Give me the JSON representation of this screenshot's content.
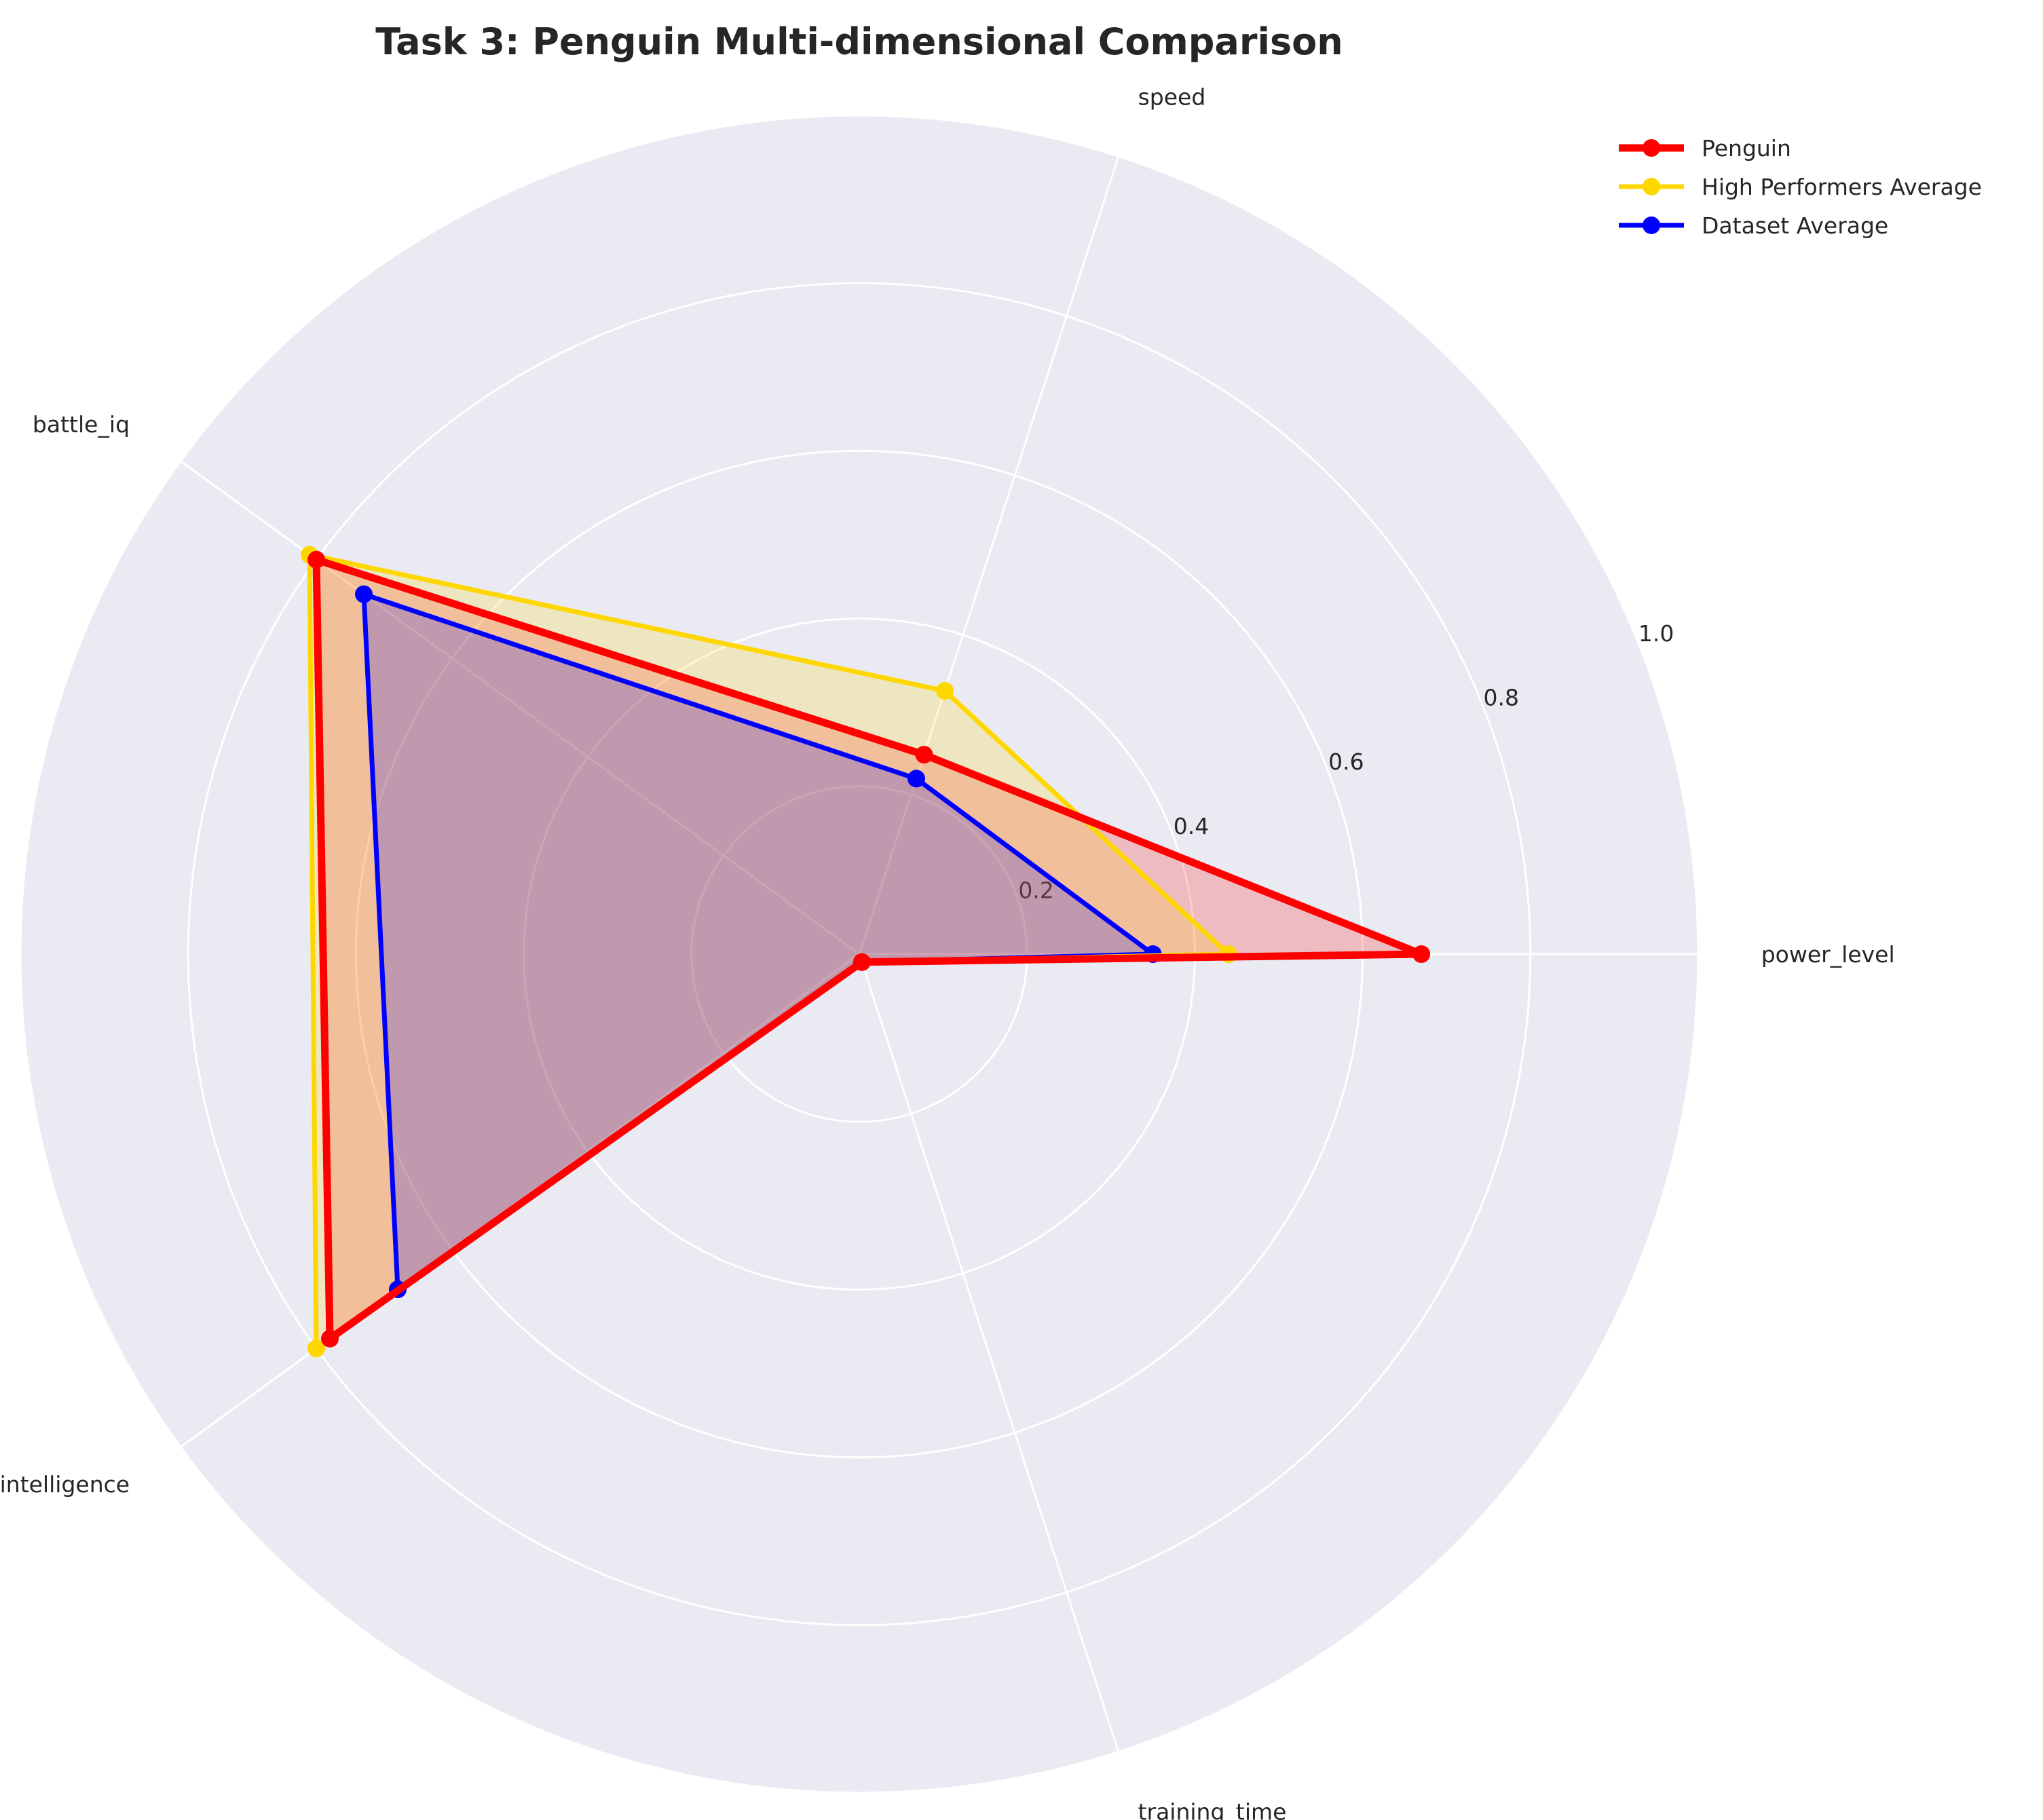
{
  "chart_data": {
    "type": "radar",
    "title": "Task 3: Penguin Multi-dimensional Comparison",
    "axes": [
      "power_level",
      "speed",
      "battle_iq",
      "intelligence",
      "training_time"
    ],
    "rlim": [
      0,
      1.0
    ],
    "rticks": [
      0.2,
      0.4,
      0.6,
      0.8,
      1.0
    ],
    "rtick_labels": [
      "0.2",
      "0.4",
      "0.6",
      "0.8",
      "1.0"
    ],
    "legend_position": "top-right",
    "grid": true,
    "series": [
      {
        "name": "Penguin",
        "color": "#ff0000",
        "values": [
          0.67,
          0.25,
          0.8,
          0.78,
          0.01
        ]
      },
      {
        "name": "High Performers Average",
        "color": "#ffd700",
        "values": [
          0.44,
          0.33,
          0.81,
          0.8,
          0.01
        ]
      },
      {
        "name": "Dataset Average",
        "color": "#0000ff",
        "values": [
          0.35,
          0.22,
          0.73,
          0.68,
          0.01
        ]
      }
    ]
  }
}
